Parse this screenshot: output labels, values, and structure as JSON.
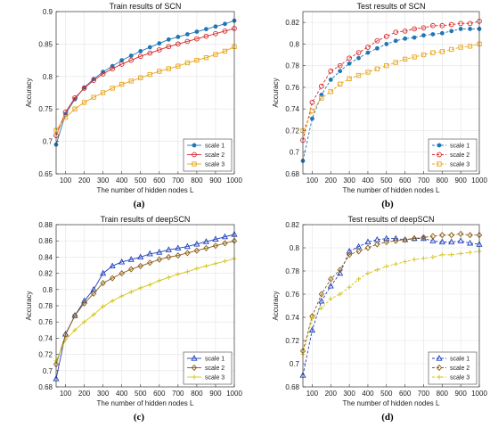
{
  "chart_data": [
    {
      "type": "line",
      "title": "Train results of SCN",
      "xlabel": "The number of hidden nodes L",
      "ylabel": "Accuracy",
      "caption": "(a)",
      "xlim": [
        50,
        1000
      ],
      "ylim": [
        0.65,
        0.9
      ],
      "xticks": [
        100,
        200,
        300,
        400,
        500,
        600,
        700,
        800,
        900,
        1000
      ],
      "yticks": [
        0.65,
        0.7,
        0.75,
        0.8,
        0.85,
        0.9
      ],
      "grid": true,
      "legend": "bottom-right",
      "x": [
        50,
        100,
        150,
        200,
        250,
        300,
        350,
        400,
        450,
        500,
        550,
        600,
        650,
        700,
        750,
        800,
        850,
        900,
        950,
        1000
      ],
      "series": [
        {
          "name": "scale 1",
          "color": "#1f77b4",
          "dash": "solid",
          "marker": "dot",
          "values": [
            0.695,
            0.742,
            0.765,
            0.783,
            0.796,
            0.807,
            0.816,
            0.825,
            0.832,
            0.839,
            0.845,
            0.851,
            0.857,
            0.861,
            0.865,
            0.869,
            0.873,
            0.877,
            0.881,
            0.886
          ]
        },
        {
          "name": "scale 2",
          "color": "#d62728",
          "dash": "solid",
          "marker": "circle",
          "values": [
            0.709,
            0.745,
            0.767,
            0.782,
            0.794,
            0.804,
            0.812,
            0.819,
            0.825,
            0.831,
            0.836,
            0.841,
            0.846,
            0.85,
            0.854,
            0.858,
            0.862,
            0.866,
            0.87,
            0.874
          ]
        },
        {
          "name": "scale 3",
          "color": "#e8a317",
          "dash": "solid",
          "marker": "square",
          "values": [
            0.717,
            0.737,
            0.75,
            0.76,
            0.768,
            0.775,
            0.782,
            0.788,
            0.793,
            0.798,
            0.803,
            0.808,
            0.812,
            0.816,
            0.821,
            0.825,
            0.829,
            0.834,
            0.839,
            0.846
          ]
        }
      ]
    },
    {
      "type": "line",
      "title": "Test results of SCN",
      "xlabel": "The number of hidden nodes L",
      "ylabel": "Accuracy",
      "caption": "(b)",
      "xlim": [
        50,
        1000
      ],
      "ylim": [
        0.68,
        0.83
      ],
      "xticks": [
        100,
        200,
        300,
        400,
        500,
        600,
        700,
        800,
        900,
        1000
      ],
      "yticks": [
        0.68,
        0.7,
        0.72,
        0.74,
        0.76,
        0.78,
        0.8,
        0.82
      ],
      "grid": true,
      "legend": "bottom-right",
      "x": [
        50,
        100,
        150,
        200,
        250,
        300,
        350,
        400,
        450,
        500,
        550,
        600,
        650,
        700,
        750,
        800,
        850,
        900,
        950,
        1000
      ],
      "series": [
        {
          "name": "scale 1",
          "color": "#1f77b4",
          "dash": "dashed",
          "marker": "dot",
          "values": [
            0.692,
            0.731,
            0.753,
            0.767,
            0.775,
            0.782,
            0.787,
            0.792,
            0.796,
            0.8,
            0.803,
            0.805,
            0.806,
            0.808,
            0.809,
            0.81,
            0.812,
            0.814,
            0.814,
            0.814
          ]
        },
        {
          "name": "scale 2",
          "color": "#d62728",
          "dash": "dashed",
          "marker": "circle",
          "values": [
            0.711,
            0.746,
            0.761,
            0.775,
            0.78,
            0.787,
            0.792,
            0.797,
            0.803,
            0.807,
            0.811,
            0.812,
            0.814,
            0.815,
            0.817,
            0.817,
            0.818,
            0.819,
            0.819,
            0.821
          ]
        },
        {
          "name": "scale 3",
          "color": "#e8a317",
          "dash": "dashed",
          "marker": "square",
          "values": [
            0.72,
            0.738,
            0.75,
            0.756,
            0.763,
            0.768,
            0.771,
            0.774,
            0.777,
            0.78,
            0.783,
            0.786,
            0.788,
            0.79,
            0.792,
            0.793,
            0.795,
            0.797,
            0.798,
            0.8
          ]
        }
      ]
    },
    {
      "type": "line",
      "title": "Train results of deepSCN",
      "xlabel": "The number of hidden nodes L",
      "ylabel": "Accuracy",
      "caption": "(c)",
      "xlim": [
        50,
        1000
      ],
      "ylim": [
        0.68,
        0.88
      ],
      "xticks": [
        100,
        200,
        300,
        400,
        500,
        600,
        700,
        800,
        900,
        1000
      ],
      "yticks": [
        0.68,
        0.7,
        0.72,
        0.74,
        0.76,
        0.78,
        0.8,
        0.82,
        0.84,
        0.86,
        0.88
      ],
      "grid": true,
      "legend": "bottom-right",
      "x": [
        50,
        100,
        150,
        200,
        250,
        300,
        350,
        400,
        450,
        500,
        550,
        600,
        650,
        700,
        750,
        800,
        850,
        900,
        950,
        1000
      ],
      "series": [
        {
          "name": "scale 1",
          "color": "#1f3fbf",
          "dash": "solid",
          "marker": "triangle",
          "values": [
            0.69,
            0.745,
            0.768,
            0.786,
            0.8,
            0.82,
            0.829,
            0.834,
            0.837,
            0.84,
            0.844,
            0.846,
            0.849,
            0.851,
            0.853,
            0.856,
            0.859,
            0.862,
            0.865,
            0.868
          ]
        },
        {
          "name": "scale 2",
          "color": "#8b5e14",
          "dash": "solid",
          "marker": "diamond",
          "values": [
            0.708,
            0.744,
            0.768,
            0.783,
            0.795,
            0.808,
            0.814,
            0.82,
            0.825,
            0.829,
            0.833,
            0.837,
            0.84,
            0.842,
            0.845,
            0.848,
            0.851,
            0.854,
            0.857,
            0.86
          ]
        },
        {
          "name": "scale 3",
          "color": "#d4c41a",
          "dash": "solid",
          "marker": "plus",
          "values": [
            0.712,
            0.738,
            0.75,
            0.76,
            0.769,
            0.779,
            0.786,
            0.792,
            0.797,
            0.802,
            0.806,
            0.811,
            0.815,
            0.819,
            0.822,
            0.826,
            0.829,
            0.832,
            0.835,
            0.838
          ]
        }
      ]
    },
    {
      "type": "line",
      "title": "Test results of deepSCN",
      "xlabel": "The number of hidden nodes L",
      "ylabel": "Accuracy",
      "caption": "(d)",
      "xlim": [
        50,
        1000
      ],
      "ylim": [
        0.68,
        0.82
      ],
      "xticks": [
        100,
        200,
        300,
        400,
        500,
        600,
        700,
        800,
        900,
        1000
      ],
      "yticks": [
        0.68,
        0.7,
        0.72,
        0.74,
        0.76,
        0.78,
        0.8,
        0.82
      ],
      "grid": true,
      "legend": "bottom-right",
      "x": [
        50,
        100,
        150,
        200,
        250,
        300,
        350,
        400,
        450,
        500,
        550,
        600,
        650,
        700,
        750,
        800,
        850,
        900,
        950,
        1000
      ],
      "series": [
        {
          "name": "scale 1",
          "color": "#1f3fbf",
          "dash": "dashed",
          "marker": "triangle",
          "values": [
            0.69,
            0.729,
            0.754,
            0.767,
            0.778,
            0.797,
            0.801,
            0.805,
            0.807,
            0.808,
            0.808,
            0.807,
            0.808,
            0.808,
            0.806,
            0.805,
            0.805,
            0.806,
            0.804,
            0.803
          ]
        },
        {
          "name": "scale 2",
          "color": "#8b5e14",
          "dash": "dashed",
          "marker": "diamond",
          "values": [
            0.711,
            0.741,
            0.76,
            0.773,
            0.781,
            0.794,
            0.797,
            0.8,
            0.803,
            0.805,
            0.806,
            0.807,
            0.808,
            0.809,
            0.81,
            0.811,
            0.811,
            0.812,
            0.811,
            0.811
          ]
        },
        {
          "name": "scale 3",
          "color": "#d4c41a",
          "dash": "dashed",
          "marker": "plus",
          "values": [
            0.708,
            0.739,
            0.748,
            0.756,
            0.76,
            0.766,
            0.773,
            0.778,
            0.781,
            0.784,
            0.786,
            0.788,
            0.79,
            0.791,
            0.792,
            0.794,
            0.794,
            0.795,
            0.796,
            0.797
          ]
        }
      ]
    }
  ]
}
